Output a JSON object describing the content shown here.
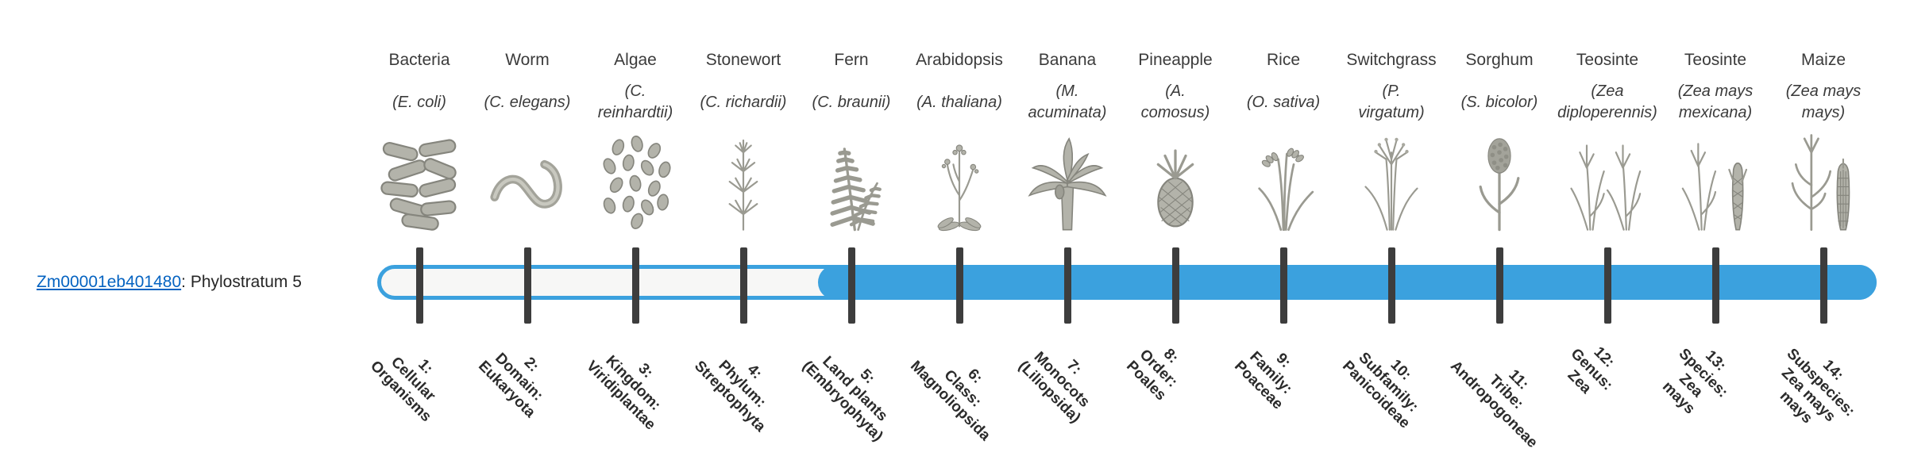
{
  "gene": {
    "id": "Zm00001eb401480",
    "suffix": ": Phylostratum 5",
    "phylostratum": 5
  },
  "colors": {
    "bar_blue": "#3ba1de",
    "bar_track": "#f7f7f6",
    "tick": "#3d3d3d",
    "link": "#0563c1",
    "text": "#3b3b3b"
  },
  "organisms": [
    {
      "name": "Bacteria",
      "sci": "(E. coli)",
      "icon": "bacteria",
      "stratum": "1:\nCellular\nOrganisms"
    },
    {
      "name": "Worm",
      "sci": "(C. elegans)",
      "icon": "worm",
      "stratum": "2:\nDomain:\nEukaryota"
    },
    {
      "name": "Algae",
      "sci": "(C.\nreinhardtii)",
      "icon": "algae",
      "stratum": "3:\nKingdom:\nViridiplantae"
    },
    {
      "name": "Stonewort",
      "sci": "(C. richardii)",
      "icon": "stonewort",
      "stratum": "4:\nPhylum:\nStreptophyta"
    },
    {
      "name": "Fern",
      "sci": "(C. braunii)",
      "icon": "fern",
      "stratum": "5:\nLand plants\n(Embryophyta)"
    },
    {
      "name": "Arabidopsis",
      "sci": "(A. thaliana)",
      "icon": "arabidopsis",
      "stratum": "6:\nClass:\nMagnoliopsida"
    },
    {
      "name": "Banana",
      "sci": "(M.\nacuminata)",
      "icon": "banana",
      "stratum": "7:\nMonocots\n(Liliopsida)"
    },
    {
      "name": "Pineapple",
      "sci": "(A.\ncomosus)",
      "icon": "pineapple",
      "stratum": "8:\nOrder:\nPoales"
    },
    {
      "name": "Rice",
      "sci": "(O. sativa)",
      "icon": "rice",
      "stratum": "9:\nFamily:\nPoaceae"
    },
    {
      "name": "Switchgrass",
      "sci": "(P.\nvirgatum)",
      "icon": "switchgrass",
      "stratum": "10:\nSubfamily:\nPanicoideae"
    },
    {
      "name": "Sorghum",
      "sci": "(S. bicolor)",
      "icon": "sorghum",
      "stratum": "11:\nTribe:\nAndropogoneae"
    },
    {
      "name": "Teosinte",
      "sci": "(Zea\ndiploperennis)",
      "icon": "teosinte",
      "stratum": "12:\nGenus:\nZea"
    },
    {
      "name": "Teosinte",
      "sci": "(Zea mays\nmexicana)",
      "icon": "teosinte2",
      "stratum": "13:\nSpecies:\nZea\nmays"
    },
    {
      "name": "Maize",
      "sci": "(Zea mays\nmays)",
      "icon": "maize",
      "stratum": "14:\nSubspecies:\nZea mays\nmays"
    }
  ]
}
